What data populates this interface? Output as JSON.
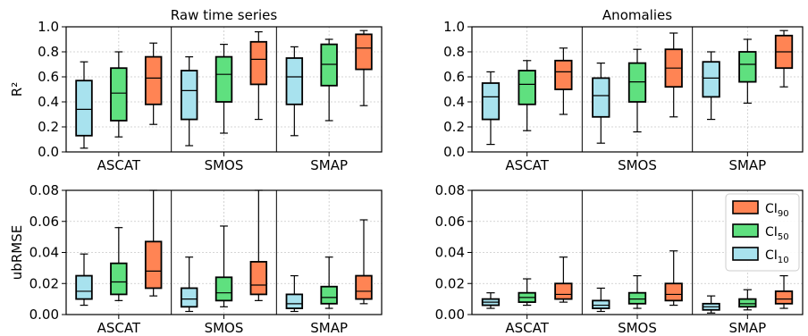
{
  "chart_data": [
    {
      "type": "box",
      "panel": "top-left",
      "title": "Raw time series",
      "ylabel": "R²",
      "ylim": [
        0,
        1.0
      ],
      "yticks": [
        "0.0",
        "0.2",
        "0.4",
        "0.6",
        "0.8",
        "1.0"
      ],
      "grid": true,
      "groups": [
        "ASCAT",
        "SMOS",
        "SMAP"
      ],
      "series": [
        {
          "label": "CI10",
          "color": "#a8e2ee",
          "boxes": [
            {
              "group": "ASCAT",
              "whislo": 0.03,
              "q1": 0.13,
              "med": 0.34,
              "q3": 0.57,
              "whishi": 0.72
            },
            {
              "group": "SMOS",
              "whislo": 0.05,
              "q1": 0.26,
              "med": 0.49,
              "q3": 0.65,
              "whishi": 0.76
            },
            {
              "group": "SMAP",
              "whislo": 0.13,
              "q1": 0.38,
              "med": 0.6,
              "q3": 0.75,
              "whishi": 0.84
            }
          ]
        },
        {
          "label": "CI50",
          "color": "#5fe07f",
          "boxes": [
            {
              "group": "ASCAT",
              "whislo": 0.12,
              "q1": 0.25,
              "med": 0.47,
              "q3": 0.67,
              "whishi": 0.8
            },
            {
              "group": "SMOS",
              "whislo": 0.15,
              "q1": 0.4,
              "med": 0.62,
              "q3": 0.76,
              "whishi": 0.86
            },
            {
              "group": "SMAP",
              "whislo": 0.25,
              "q1": 0.53,
              "med": 0.7,
              "q3": 0.86,
              "whishi": 0.9
            }
          ]
        },
        {
          "label": "CI90",
          "color": "#ff8454",
          "boxes": [
            {
              "group": "ASCAT",
              "whislo": 0.22,
              "q1": 0.38,
              "med": 0.59,
              "q3": 0.76,
              "whishi": 0.87
            },
            {
              "group": "SMOS",
              "whislo": 0.26,
              "q1": 0.54,
              "med": 0.74,
              "q3": 0.88,
              "whishi": 0.96
            },
            {
              "group": "SMAP",
              "whislo": 0.37,
              "q1": 0.66,
              "med": 0.83,
              "q3": 0.94,
              "whishi": 0.97
            }
          ]
        }
      ]
    },
    {
      "type": "box",
      "panel": "top-right",
      "title": "Anomalies",
      "ylabel": "",
      "ylim": [
        0,
        1.0
      ],
      "yticks": [
        "0.0",
        "0.2",
        "0.4",
        "0.6",
        "0.8",
        "1.0"
      ],
      "grid": true,
      "groups": [
        "ASCAT",
        "SMOS",
        "SMAP"
      ],
      "series": [
        {
          "label": "CI10",
          "color": "#a8e2ee",
          "boxes": [
            {
              "group": "ASCAT",
              "whislo": 0.06,
              "q1": 0.26,
              "med": 0.44,
              "q3": 0.55,
              "whishi": 0.64
            },
            {
              "group": "SMOS",
              "whislo": 0.07,
              "q1": 0.28,
              "med": 0.45,
              "q3": 0.59,
              "whishi": 0.71
            },
            {
              "group": "SMAP",
              "whislo": 0.26,
              "q1": 0.44,
              "med": 0.59,
              "q3": 0.72,
              "whishi": 0.8
            }
          ]
        },
        {
          "label": "CI50",
          "color": "#5fe07f",
          "boxes": [
            {
              "group": "ASCAT",
              "whislo": 0.17,
              "q1": 0.38,
              "med": 0.54,
              "q3": 0.65,
              "whishi": 0.73
            },
            {
              "group": "SMOS",
              "whislo": 0.16,
              "q1": 0.4,
              "med": 0.56,
              "q3": 0.71,
              "whishi": 0.82
            },
            {
              "group": "SMAP",
              "whislo": 0.39,
              "q1": 0.56,
              "med": 0.7,
              "q3": 0.8,
              "whishi": 0.9
            }
          ]
        },
        {
          "label": "CI90",
          "color": "#ff8454",
          "boxes": [
            {
              "group": "ASCAT",
              "whislo": 0.3,
              "q1": 0.5,
              "med": 0.64,
              "q3": 0.73,
              "whishi": 0.83
            },
            {
              "group": "SMOS",
              "whislo": 0.28,
              "q1": 0.52,
              "med": 0.67,
              "q3": 0.82,
              "whishi": 0.95
            },
            {
              "group": "SMAP",
              "whislo": 0.52,
              "q1": 0.67,
              "med": 0.8,
              "q3": 0.93,
              "whishi": 0.97
            }
          ]
        }
      ]
    },
    {
      "type": "box",
      "panel": "bottom-left",
      "title": "",
      "ylabel": "ubRMSE",
      "ylim": [
        0,
        0.08
      ],
      "yticks": [
        "0.00",
        "0.02",
        "0.04",
        "0.06",
        "0.08"
      ],
      "grid": true,
      "groups": [
        "ASCAT",
        "SMOS",
        "SMAP"
      ],
      "series": [
        {
          "label": "CI10",
          "color": "#a8e2ee",
          "boxes": [
            {
              "group": "ASCAT",
              "whislo": 0.006,
              "q1": 0.01,
              "med": 0.015,
              "q3": 0.025,
              "whishi": 0.039
            },
            {
              "group": "SMOS",
              "whislo": 0.002,
              "q1": 0.005,
              "med": 0.01,
              "q3": 0.017,
              "whishi": 0.037
            },
            {
              "group": "SMAP",
              "whislo": 0.002,
              "q1": 0.004,
              "med": 0.007,
              "q3": 0.013,
              "whishi": 0.025
            }
          ]
        },
        {
          "label": "CI50",
          "color": "#5fe07f",
          "boxes": [
            {
              "group": "ASCAT",
              "whislo": 0.009,
              "q1": 0.013,
              "med": 0.021,
              "q3": 0.033,
              "whishi": 0.056
            },
            {
              "group": "SMOS",
              "whislo": 0.005,
              "q1": 0.009,
              "med": 0.014,
              "q3": 0.024,
              "whishi": 0.057
            },
            {
              "group": "SMAP",
              "whislo": 0.004,
              "q1": 0.007,
              "med": 0.011,
              "q3": 0.018,
              "whishi": 0.037
            }
          ]
        },
        {
          "label": "CI90",
          "color": "#ff8454",
          "boxes": [
            {
              "group": "ASCAT",
              "whislo": 0.012,
              "q1": 0.017,
              "med": 0.028,
              "q3": 0.047,
              "whishi": 0.08
            },
            {
              "group": "SMOS",
              "whislo": 0.009,
              "q1": 0.013,
              "med": 0.019,
              "q3": 0.034,
              "whishi": 0.08
            },
            {
              "group": "SMAP",
              "whislo": 0.007,
              "q1": 0.01,
              "med": 0.015,
              "q3": 0.025,
              "whishi": 0.061
            }
          ]
        }
      ]
    },
    {
      "type": "box",
      "panel": "bottom-right",
      "title": "",
      "ylabel": "",
      "ylim": [
        0,
        0.08
      ],
      "yticks": [
        "0.00",
        "0.02",
        "0.04",
        "0.06",
        "0.08"
      ],
      "grid": true,
      "legend": "top-right",
      "groups": [
        "ASCAT",
        "SMOS",
        "SMAP"
      ],
      "series": [
        {
          "label": "CI10",
          "color": "#a8e2ee",
          "boxes": [
            {
              "group": "ASCAT",
              "whislo": 0.004,
              "q1": 0.006,
              "med": 0.008,
              "q3": 0.01,
              "whishi": 0.014
            },
            {
              "group": "SMOS",
              "whislo": 0.002,
              "q1": 0.004,
              "med": 0.006,
              "q3": 0.009,
              "whishi": 0.017
            },
            {
              "group": "SMAP",
              "whislo": 0.001,
              "q1": 0.003,
              "med": 0.005,
              "q3": 0.007,
              "whishi": 0.012
            }
          ]
        },
        {
          "label": "CI50",
          "color": "#5fe07f",
          "boxes": [
            {
              "group": "ASCAT",
              "whislo": 0.006,
              "q1": 0.008,
              "med": 0.011,
              "q3": 0.014,
              "whishi": 0.023
            },
            {
              "group": "SMOS",
              "whislo": 0.004,
              "q1": 0.007,
              "med": 0.01,
              "q3": 0.014,
              "whishi": 0.025
            },
            {
              "group": "SMAP",
              "whislo": 0.003,
              "q1": 0.005,
              "med": 0.007,
              "q3": 0.01,
              "whishi": 0.016
            }
          ]
        },
        {
          "label": "CI90",
          "color": "#ff8454",
          "boxes": [
            {
              "group": "ASCAT",
              "whislo": 0.008,
              "q1": 0.01,
              "med": 0.013,
              "q3": 0.02,
              "whishi": 0.037
            },
            {
              "group": "SMOS",
              "whislo": 0.006,
              "q1": 0.009,
              "med": 0.013,
              "q3": 0.02,
              "whishi": 0.041
            },
            {
              "group": "SMAP",
              "whislo": 0.004,
              "q1": 0.007,
              "med": 0.01,
              "q3": 0.015,
              "whishi": 0.025
            }
          ]
        }
      ]
    }
  ],
  "legend": {
    "items": [
      {
        "base": "CI",
        "sub": "90",
        "color": "#ff8454"
      },
      {
        "base": "CI",
        "sub": "50",
        "color": "#5fe07f"
      },
      {
        "base": "CI",
        "sub": "10",
        "color": "#a8e2ee"
      }
    ]
  }
}
